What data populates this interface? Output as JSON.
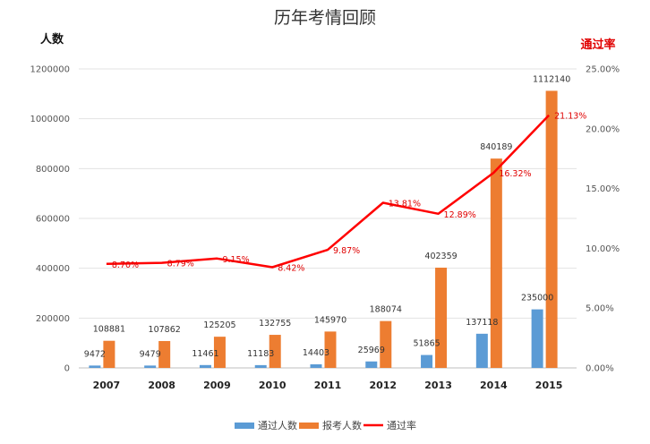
{
  "chart_data": {
    "type": "bar",
    "title": "历年考情回顾",
    "ylabel": "人数",
    "y2label": "通过率",
    "categories": [
      "2007",
      "2008",
      "2009",
      "2010",
      "2011",
      "2012",
      "2013",
      "2014",
      "2015"
    ],
    "ylim": [
      0,
      1200000
    ],
    "y2lim": [
      0,
      25
    ],
    "yticks": [
      "0",
      "200000",
      "400000",
      "600000",
      "800000",
      "1000000",
      "1200000"
    ],
    "y2ticks": [
      "0.00%",
      "5.00%",
      "10.00%",
      "15.00%",
      "20.00%",
      "25.00%"
    ],
    "series": [
      {
        "name": "通过人数",
        "type": "bar",
        "axis": "left",
        "color": "#5b9bd5",
        "values": [
          9472,
          9479,
          11461,
          11183,
          14403,
          25969,
          51865,
          137118,
          235000
        ],
        "labels": [
          "9472",
          "9479",
          "11461",
          "11183",
          "14403",
          "25969",
          "51865",
          "137118",
          "235000"
        ]
      },
      {
        "name": "报考人数",
        "type": "bar",
        "axis": "left",
        "color": "#ed7d31",
        "values": [
          108881,
          107862,
          125205,
          132755,
          145970,
          188074,
          402359,
          840189,
          1112140
        ],
        "labels": [
          "108881",
          "107862",
          "125205",
          "132755",
          "145970",
          "188074",
          "402359",
          "840189",
          "1112140"
        ]
      },
      {
        "name": "通过率",
        "type": "line",
        "axis": "right",
        "color": "#ff0000",
        "values": [
          8.7,
          8.79,
          9.15,
          8.42,
          9.87,
          13.81,
          12.89,
          16.32,
          21.13
        ],
        "labels": [
          "8.70%",
          "8.79%",
          "9.15%",
          "8.42%",
          "9.87%",
          "13.81%",
          "12.89%",
          "16.32%",
          "21.13%"
        ]
      }
    ],
    "grid": true,
    "legend": "bottom"
  }
}
